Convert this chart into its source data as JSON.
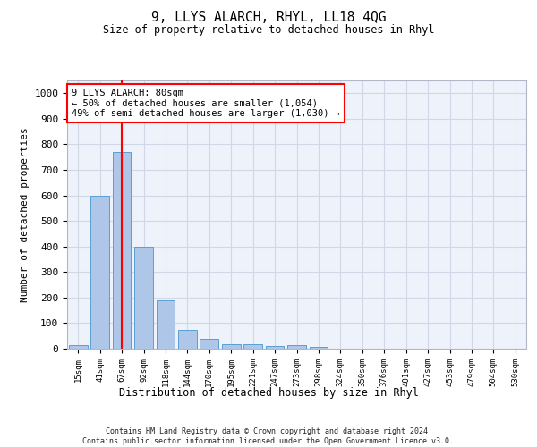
{
  "title1": "9, LLYS ALARCH, RHYL, LL18 4QG",
  "title2": "Size of property relative to detached houses in Rhyl",
  "xlabel": "Distribution of detached houses by size in Rhyl",
  "ylabel": "Number of detached properties",
  "bin_labels": [
    "15sqm",
    "41sqm",
    "67sqm",
    "92sqm",
    "118sqm",
    "144sqm",
    "170sqm",
    "195sqm",
    "221sqm",
    "247sqm",
    "273sqm",
    "298sqm",
    "324sqm",
    "350sqm",
    "376sqm",
    "401sqm",
    "427sqm",
    "453sqm",
    "479sqm",
    "504sqm",
    "530sqm"
  ],
  "bar_values": [
    15,
    600,
    770,
    400,
    190,
    75,
    40,
    18,
    17,
    10,
    13,
    8,
    1,
    1,
    0,
    0,
    0,
    0,
    0,
    0,
    0
  ],
  "bar_color": "#aec6e8",
  "bar_edge_color": "#5a9fd4",
  "property_line_x": 2.0,
  "annotation_text": "9 LLYS ALARCH: 80sqm\n← 50% of detached houses are smaller (1,054)\n49% of semi-detached houses are larger (1,030) →",
  "annotation_box_color": "white",
  "annotation_box_edge_color": "red",
  "line_color": "red",
  "ylim": [
    0,
    1050
  ],
  "yticks": [
    0,
    100,
    200,
    300,
    400,
    500,
    600,
    700,
    800,
    900,
    1000
  ],
  "grid_color": "#d0d8e8",
  "background_color": "#eef2fa",
  "footer_text": "Contains HM Land Registry data © Crown copyright and database right 2024.\nContains public sector information licensed under the Open Government Licence v3.0."
}
